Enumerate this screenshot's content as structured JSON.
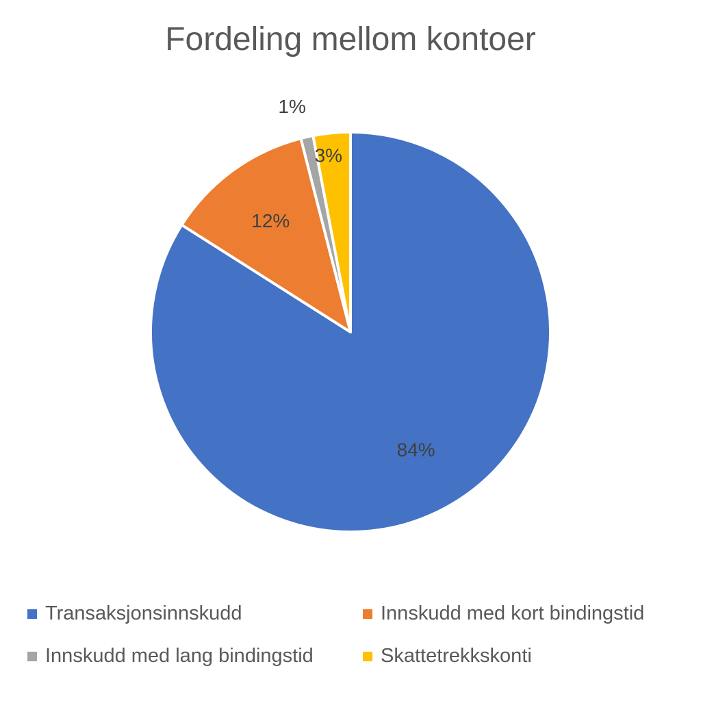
{
  "chart_data": {
    "type": "pie",
    "title": "Fordeling mellom kontoer",
    "slices": [
      {
        "name": "Transaksjonsinnskudd",
        "value": 84,
        "label": "84%",
        "color": "#4472C4"
      },
      {
        "name": "Innskudd med kort bindingstid",
        "value": 12,
        "label": "12%",
        "color": "#ED7D31"
      },
      {
        "name": "Innskudd med lang bindingstid",
        "value": 1,
        "label": "1%",
        "color": "#A5A5A5"
      },
      {
        "name": "Skattetrekkskonti",
        "value": 3,
        "label": "3%",
        "color": "#FFC000"
      }
    ],
    "legend_position": "bottom",
    "grid": false
  }
}
